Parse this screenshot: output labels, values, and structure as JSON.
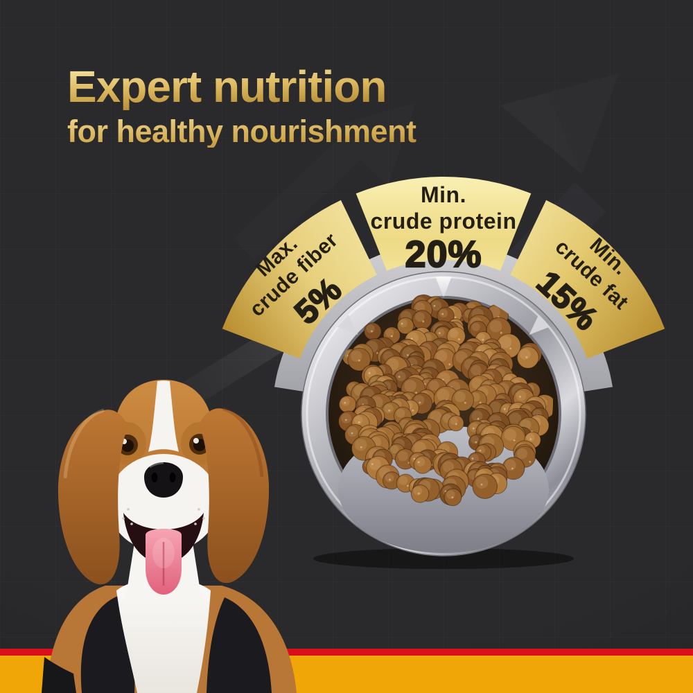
{
  "heading": {
    "title": "Expert nutrition",
    "subtitle": "for healthy nourishment"
  },
  "gauge": {
    "segments": [
      {
        "qualifier": "Max.",
        "nutrient": "crude fiber",
        "value": "5%"
      },
      {
        "qualifier": "Min.",
        "nutrient": "crude protein",
        "value": "20%"
      },
      {
        "qualifier": "Min.",
        "nutrient": "crude fat",
        "value": "15%"
      }
    ]
  },
  "chart_data": {
    "type": "gauge",
    "title": "Expert nutrition for healthy nourishment",
    "segments": [
      {
        "label": "Max. crude fiber",
        "value": 5,
        "unit": "%"
      },
      {
        "label": "Min. crude protein",
        "value": 20,
        "unit": "%"
      },
      {
        "label": "Min. crude fat",
        "value": 15,
        "unit": "%"
      }
    ],
    "layout": "three gold fan segments arranged in a semicircle above a bowl of kibble; side labels rotated toward bowl center"
  },
  "scene": {
    "images": [
      {
        "name": "beagle-dog-photo",
        "description": "happy beagle facing camera, mouth open, pink tongue out, tan ears, white blaze and chest, black shoulder patches"
      },
      {
        "name": "kibble-bowl-photo",
        "description": "stainless steel bowl filled with round brown kibble seen from above"
      },
      {
        "name": "growth-arrow-graphic",
        "description": "faint dark upward-trending zigzag arrows on charcoal grid background"
      }
    ]
  },
  "colors": {
    "background": "#2a2a2c",
    "gold_text": "#d9b55e",
    "segment_gold_light": "#f7ecae",
    "segment_gold_dark": "#ba8f31",
    "label_ink": "#241f15",
    "stripe_red": "#d8101c",
    "stripe_yellow": "#f1a607"
  }
}
